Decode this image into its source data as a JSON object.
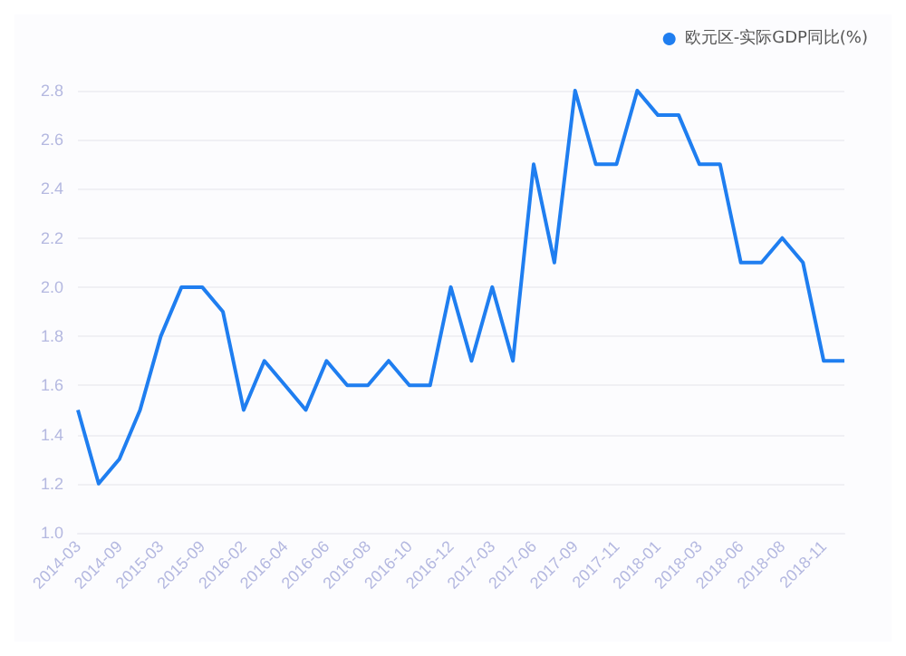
{
  "chart_data": {
    "type": "line",
    "categories": [
      "2014-03",
      null,
      "2014-09",
      null,
      "2015-03",
      null,
      "2015-09",
      null,
      "2016-02",
      null,
      "2016-04",
      null,
      "2016-06",
      null,
      "2016-08",
      null,
      "2016-10",
      null,
      "2016-12",
      null,
      "2017-03",
      null,
      "2017-06",
      null,
      "2017-09",
      null,
      "2017-11",
      null,
      "2018-01",
      null,
      "2018-03",
      null,
      "2018-06",
      null,
      "2018-08",
      null,
      "2018-11",
      null
    ],
    "series": [
      {
        "name": "欧元区-实际GDP同比(%)",
        "color": "#1f7ef0",
        "values": [
          1.5,
          1.2,
          1.3,
          1.5,
          1.8,
          2.0,
          2.0,
          1.9,
          1.5,
          1.7,
          1.6,
          1.5,
          1.7,
          1.6,
          1.6,
          1.7,
          1.6,
          1.6,
          2.0,
          1.7,
          2.0,
          1.7,
          2.5,
          2.1,
          2.8,
          2.5,
          2.5,
          2.8,
          2.7,
          2.7,
          2.5,
          2.5,
          2.1,
          2.1,
          2.2,
          2.1,
          1.7,
          1.7
        ]
      }
    ],
    "ylim": [
      1.0,
      2.8
    ],
    "yticks": [
      {
        "value": 1,
        "label": "1.0"
      },
      1.2,
      1.4,
      1.6,
      1.8,
      {
        "value": 2,
        "label": "2.0"
      },
      2.2,
      2.4,
      2.6,
      2.8
    ],
    "grid": "y",
    "legend": "top right",
    "marker": "none",
    "line_style": "solid"
  }
}
